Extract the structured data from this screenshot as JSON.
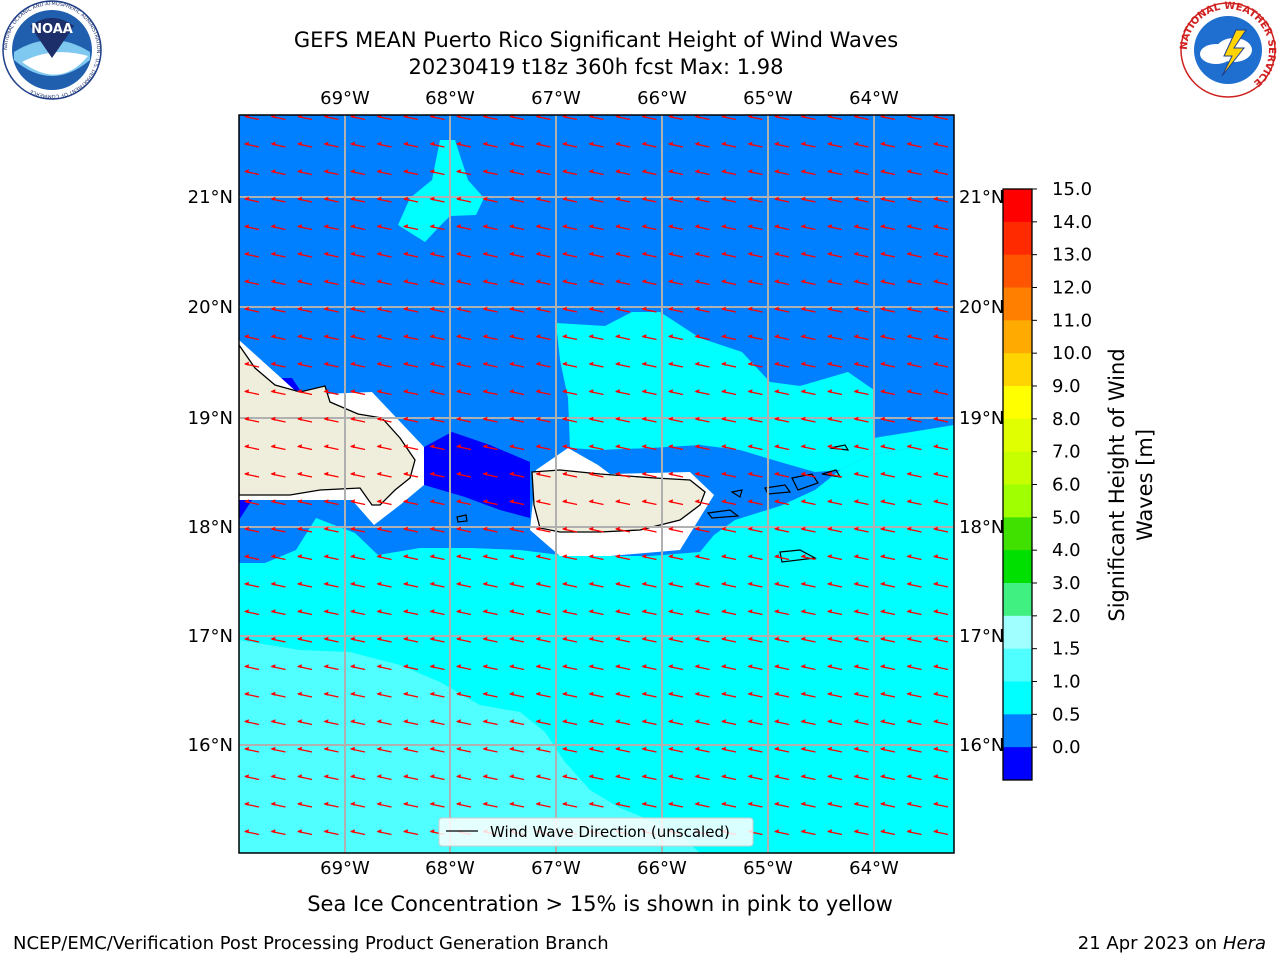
{
  "header": {
    "title_line1": "GEFS MEAN Puerto Rico Significant Height of Wind Waves",
    "title_line2": "20230419 t18z 360h fcst   Max: 1.98"
  },
  "logos": {
    "noaa_text": "NOAA",
    "noaa_ring_text": "NATIONAL OCEANIC AND ATMOSPHERIC ADMINISTRATION · U.S. DEPARTMENT OF COMMERCE",
    "nws_ring_text": "NATIONAL WEATHER SERVICE"
  },
  "map": {
    "lon_ticks": [
      "69°W",
      "68°W",
      "67°W",
      "66°W",
      "65°W",
      "64°W"
    ],
    "lat_ticks": [
      "21°N",
      "20°N",
      "19°N",
      "18°N",
      "17°N",
      "16°N"
    ],
    "legend_label": "Wind Wave Direction (unscaled)",
    "arrow_color": "#ff0000",
    "land_color": "#efeedc"
  },
  "colorbar": {
    "label_line1": "Significant Height of Wind",
    "label_line2": "Waves [m]",
    "ticks": [
      "15.0",
      "14.0",
      "13.0",
      "12.0",
      "11.0",
      "10.0",
      "9.0",
      "8.0",
      "7.0",
      "6.0",
      "5.0",
      "4.0",
      "3.0",
      "2.0",
      "1.5",
      "1.0",
      "0.5",
      "0.0"
    ],
    "colors_top_to_bottom": [
      "#ff0000",
      "#ff2a00",
      "#ff5500",
      "#ff8000",
      "#ffaa00",
      "#ffd400",
      "#ffff00",
      "#e0ff00",
      "#c8ff00",
      "#a0ff00",
      "#40e000",
      "#00e000",
      "#40f080",
      "#a0ffff",
      "#50ffff",
      "#00ffff",
      "#0080ff",
      "#0000ff"
    ]
  },
  "notes": {
    "sea_ice": "Sea Ice Concentration > 15% is shown in pink to yellow"
  },
  "footer": {
    "left": "NCEP/EMC/Verification Post Processing Product Generation Branch",
    "right_prefix": "21 Apr 2023 on ",
    "right_machine": "Hera"
  }
}
